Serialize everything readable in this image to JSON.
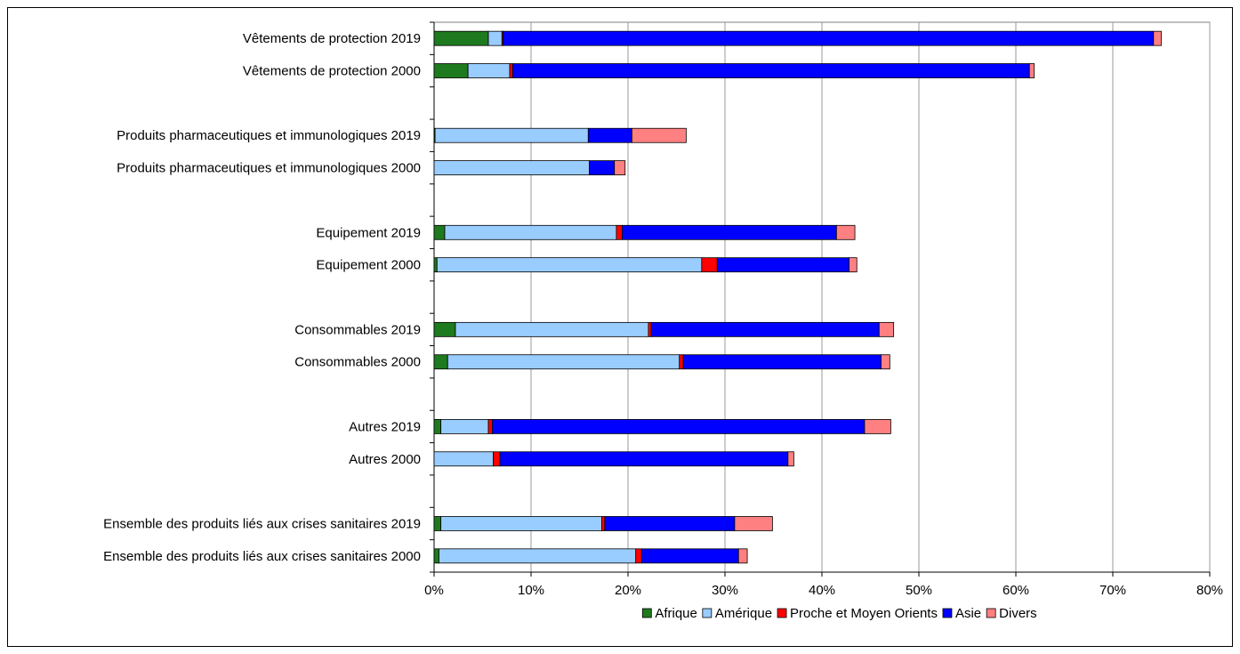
{
  "chart_data": {
    "type": "bar",
    "orientation": "horizontal",
    "stacked": true,
    "title": "",
    "xlabel": "",
    "ylabel": "",
    "xlim": [
      0,
      80
    ],
    "x_ticks": [
      "0%",
      "10%",
      "20%",
      "30%",
      "40%",
      "50%",
      "60%",
      "70%",
      "80%"
    ],
    "grid": "vertical",
    "legend_position": "bottom",
    "categories": [
      "Vêtements de protection 2019",
      "Vêtements de protection 2000",
      "",
      "Produits pharmaceutiques et immunologiques 2019",
      "Produits pharmaceutiques et immunologiques 2000",
      "",
      "Equipement 2019",
      "Equipement 2000",
      "",
      "Consommables 2019",
      "Consommables 2000",
      "",
      "Autres 2019",
      "Autres 2000",
      "",
      "Ensemble des produits liés aux crises sanitaires 2019",
      "Ensemble des produits liés aux crises sanitaires 2000"
    ],
    "series": [
      {
        "name": "Afrique",
        "color": "#1e7a1e",
        "values": [
          5.6,
          3.5,
          null,
          0.1,
          0.0,
          null,
          1.1,
          0.3,
          null,
          2.2,
          1.4,
          null,
          0.7,
          0.0,
          null,
          0.7,
          0.5
        ]
      },
      {
        "name": "Amérique",
        "color": "#99ccff",
        "values": [
          1.4,
          4.3,
          null,
          15.8,
          16.0,
          null,
          17.7,
          27.3,
          null,
          19.9,
          23.9,
          null,
          4.9,
          6.1,
          null,
          16.6,
          20.3
        ]
      },
      {
        "name": "Proche et Moyen Orients",
        "color": "#ff0000",
        "values": [
          0.1,
          0.3,
          null,
          0.0,
          0.0,
          null,
          0.6,
          1.6,
          null,
          0.3,
          0.4,
          null,
          0.4,
          0.7,
          null,
          0.3,
          0.6
        ]
      },
      {
        "name": "Asie",
        "color": "#0000ff",
        "values": [
          67.1,
          53.3,
          null,
          4.5,
          2.6,
          null,
          22.1,
          13.6,
          null,
          23.5,
          20.4,
          null,
          38.4,
          29.7,
          null,
          13.4,
          10.0
        ]
      },
      {
        "name": "Divers",
        "color": "#ff8080",
        "values": [
          0.8,
          0.5,
          null,
          5.6,
          1.1,
          null,
          1.9,
          0.8,
          null,
          1.5,
          0.9,
          null,
          2.7,
          0.6,
          null,
          3.9,
          0.9
        ]
      }
    ]
  }
}
